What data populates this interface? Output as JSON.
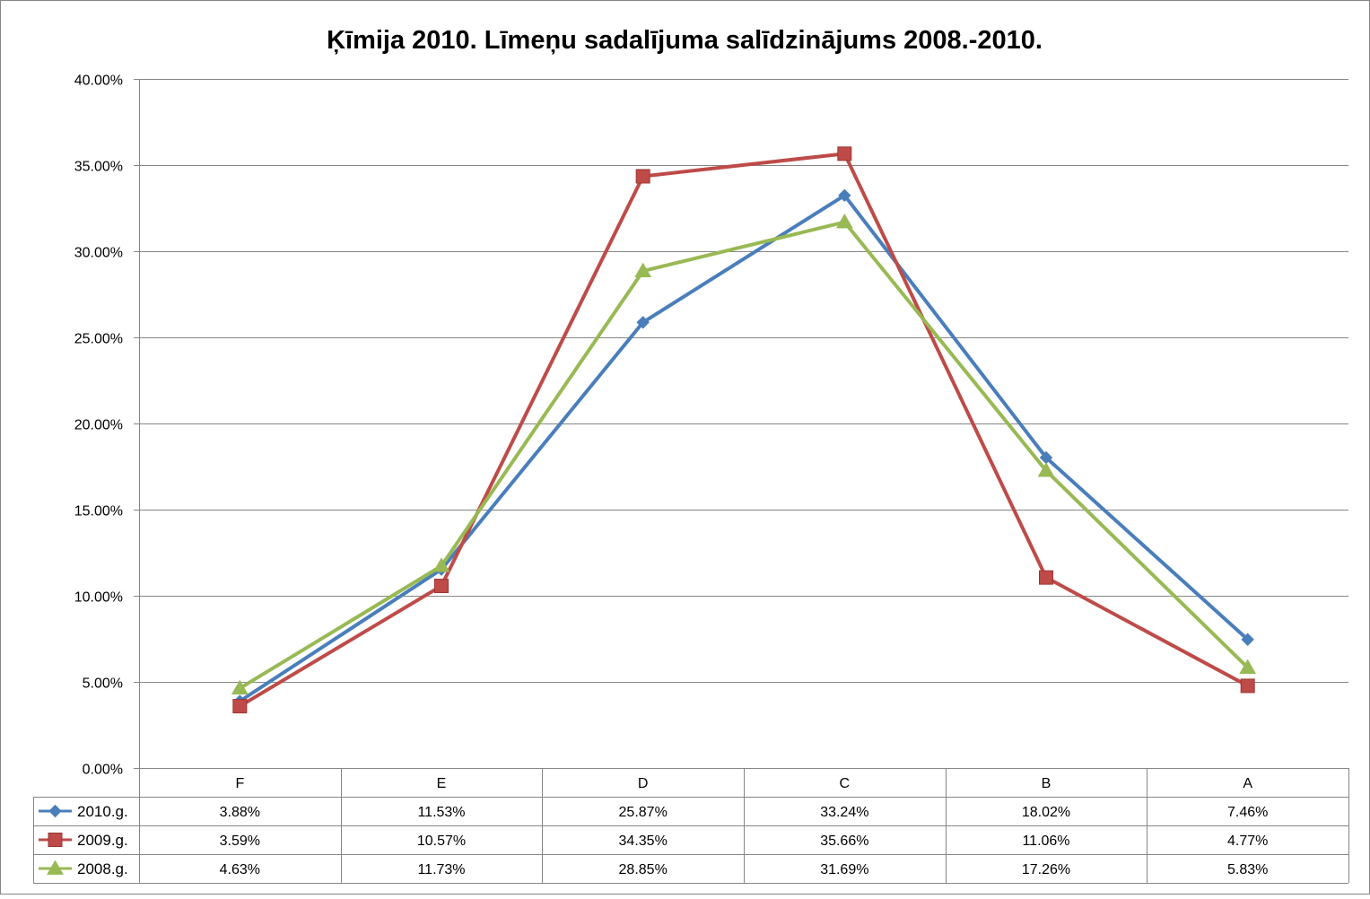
{
  "chart_data": {
    "type": "line",
    "title": "Ķīmija 2010. Līmeņu sadalījuma salīdzinājums 2008.-2010.",
    "xlabel": "",
    "ylabel": "",
    "categories": [
      "F",
      "E",
      "D",
      "C",
      "B",
      "A"
    ],
    "ylim": [
      0,
      40
    ],
    "yticks": [
      "0.00%",
      "5.00%",
      "10.00%",
      "15.00%",
      "20.00%",
      "25.00%",
      "30.00%",
      "35.00%",
      "40.00%"
    ],
    "grid": true,
    "legend": "data-table",
    "series": [
      {
        "name": "2010.g.",
        "color": "#4a7ebb",
        "marker": "diamond",
        "values": [
          3.88,
          11.53,
          25.87,
          33.24,
          18.02,
          7.46
        ],
        "labels": [
          "3.88%",
          "11.53%",
          "25.87%",
          "33.24%",
          "18.02%",
          "7.46%"
        ]
      },
      {
        "name": "2009.g.",
        "color": "#be4b48",
        "marker": "square",
        "values": [
          3.59,
          10.57,
          34.35,
          35.66,
          11.06,
          4.77
        ],
        "labels": [
          "3.59%",
          "10.57%",
          "34.35%",
          "35.66%",
          "11.06%",
          "4.77%"
        ]
      },
      {
        "name": "2008.g.",
        "color": "#98b954",
        "marker": "triangle",
        "values": [
          4.63,
          11.73,
          28.85,
          31.69,
          17.26,
          5.83
        ],
        "labels": [
          "4.63%",
          "11.73%",
          "28.85%",
          "31.69%",
          "17.26%",
          "5.83%"
        ]
      }
    ]
  }
}
